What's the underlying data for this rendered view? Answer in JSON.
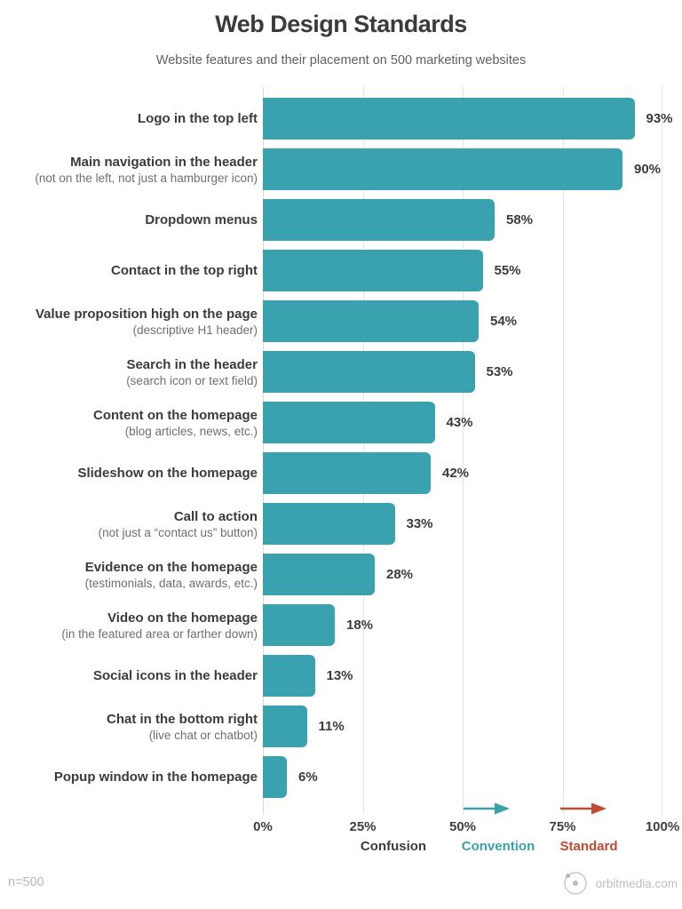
{
  "header": {
    "title": "Web Design Standards",
    "subtitle": "Website features and their placement on 500 marketing websites"
  },
  "chart_data": {
    "type": "bar",
    "orientation": "horizontal",
    "title": "Web Design Standards",
    "subtitle": "Website features and their placement on 500 marketing websites",
    "categories": [
      "Logo in the top left",
      "Main navigation in the header",
      "Dropdown menus",
      "Contact in the top right",
      "Value proposition high on the page",
      "Search in the header",
      "Content on the homepage",
      "Slideshow on the homepage",
      "Call to action",
      "Evidence on the homepage",
      "Video on the homepage",
      "Social icons in the header",
      "Chat in the bottom right",
      "Popup window in the homepage"
    ],
    "sublabels": [
      "",
      "(not on the left, not just a hamburger icon)",
      "",
      "",
      "(descriptive H1 header)",
      "(search icon or text field)",
      "(blog articles, news, etc.)",
      "",
      "(not just a “contact us” button)",
      "(testimonials, data, awards, etc.)",
      "(in the featured area or farther down)",
      "",
      "(live chat or chatbot)",
      ""
    ],
    "values": [
      93,
      90,
      58,
      55,
      54,
      53,
      43,
      42,
      33,
      28,
      18,
      13,
      11,
      6
    ],
    "unit": "%",
    "xlim": [
      0,
      100
    ],
    "x_ticks": [
      "0%",
      "25%",
      "50%",
      "75%",
      "100%"
    ],
    "grid": true,
    "bar_color": "#3AA2AE",
    "legend_position": "bottom",
    "legend": [
      {
        "label": "Confusion",
        "color": "#3E3E3E",
        "arrow": false
      },
      {
        "label": "Convention",
        "color": "#3AA2AE",
        "arrow": true
      },
      {
        "label": "Standard",
        "color": "#C14B31",
        "arrow": true
      }
    ]
  },
  "footer": {
    "sample_note": "n=500",
    "brand_domain": "orbitmedia.com"
  }
}
